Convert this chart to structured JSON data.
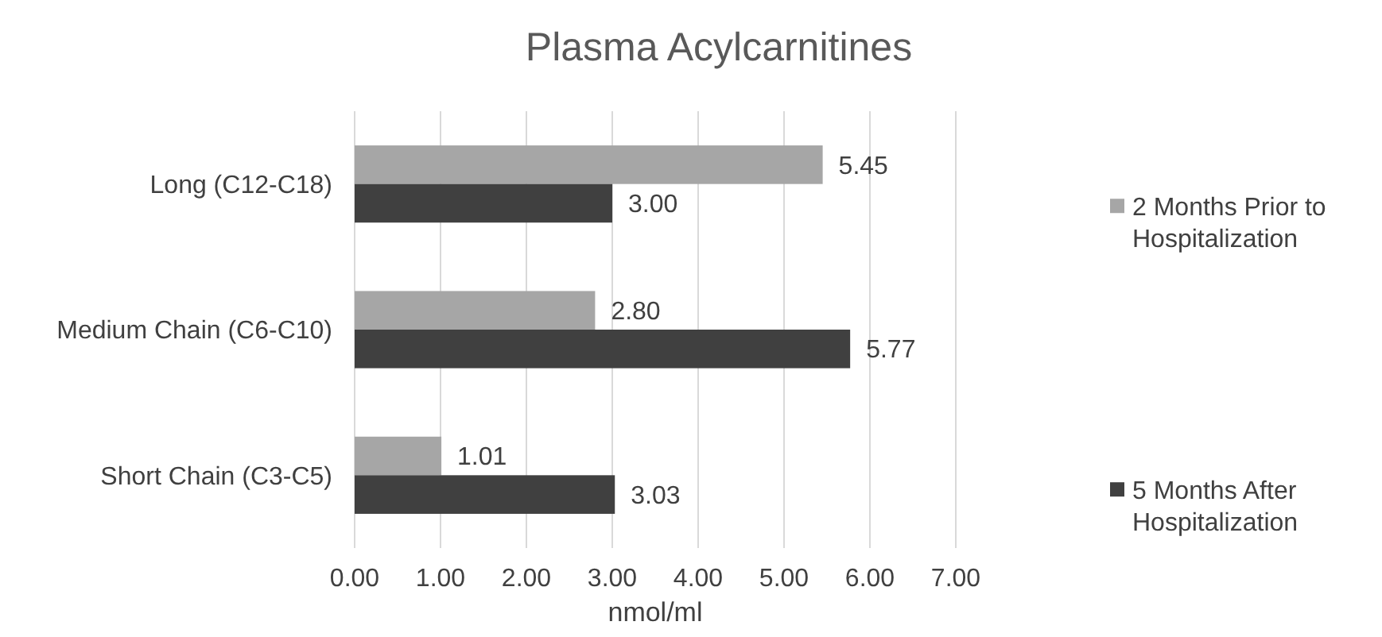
{
  "chart_data": {
    "type": "bar",
    "orientation": "horizontal",
    "title": "Plasma Acylcarnitines",
    "xlabel": "nmol/ml",
    "categories": [
      "Long (C12-C18)",
      "Medium Chain (C6-C10)",
      "Short Chain (C3-C5)"
    ],
    "series": [
      {
        "name": "2 Months Prior to Hospitalization",
        "color": "#a6a6a6",
        "values": [
          5.45,
          2.8,
          1.01
        ],
        "value_labels": [
          "5.45",
          "2.80",
          "1.01"
        ]
      },
      {
        "name": "5 Months After Hospitalization",
        "color": "#404040",
        "values": [
          3.0,
          5.77,
          3.03
        ],
        "value_labels": [
          "3.00",
          "5.77",
          "3.03"
        ]
      }
    ],
    "xlim": [
      0,
      7
    ],
    "xticks": [
      {
        "value": 0,
        "label": "0.00"
      },
      {
        "value": 1,
        "label": "1.00"
      },
      {
        "value": 2,
        "label": "2.00"
      },
      {
        "value": 3,
        "label": "3.00"
      },
      {
        "value": 4,
        "label": "4.00"
      },
      {
        "value": 5,
        "label": "5.00"
      },
      {
        "value": 6,
        "label": "6.00"
      },
      {
        "value": 7,
        "label": "7.00"
      }
    ],
    "grid": "x",
    "legend": "right"
  }
}
